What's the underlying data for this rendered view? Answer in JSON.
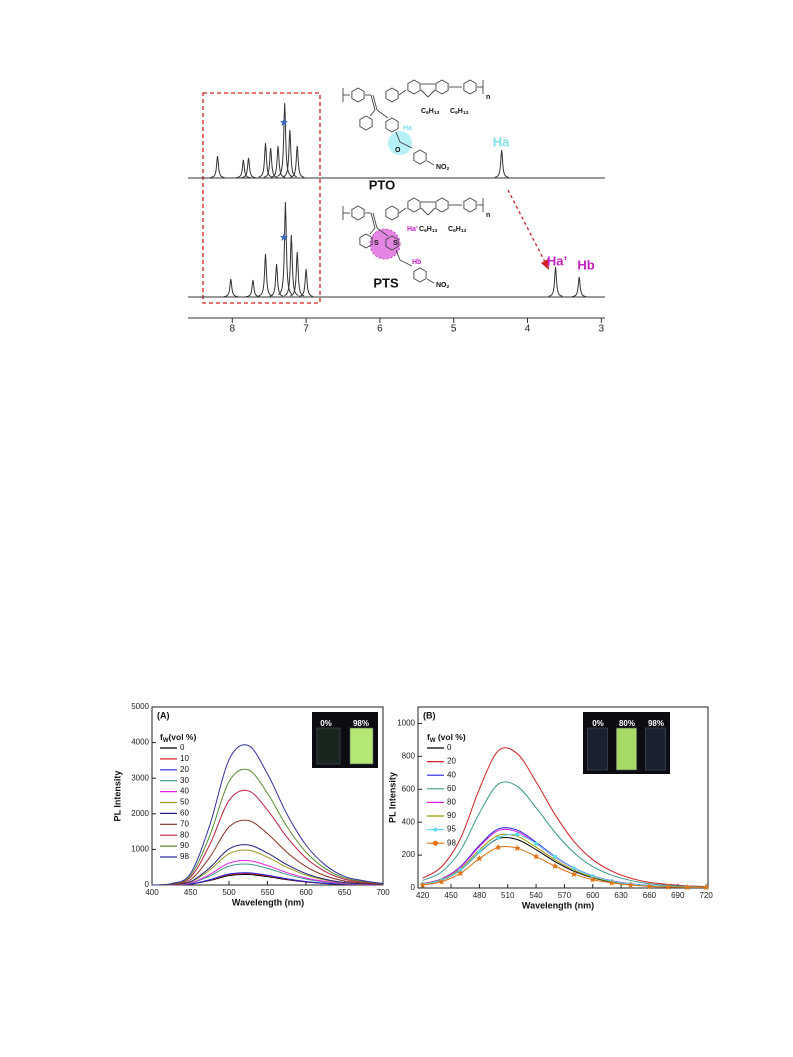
{
  "chart_data": [
    {
      "type": "nmr",
      "xlim": [
        8.6,
        2.95
      ],
      "xticks": [
        8,
        7,
        6,
        5,
        4,
        3
      ],
      "spectra": [
        {
          "name": "PTO",
          "peaks": [
            {
              "x": 8.2,
              "h": 22
            },
            {
              "x": 7.85,
              "h": 18
            },
            {
              "x": 7.78,
              "h": 20
            },
            {
              "x": 7.55,
              "h": 35
            },
            {
              "x": 7.48,
              "h": 30
            },
            {
              "x": 7.38,
              "h": 32
            },
            {
              "x": 7.29,
              "h": 75
            },
            {
              "x": 7.22,
              "h": 48
            },
            {
              "x": 7.12,
              "h": 32
            },
            {
              "x": 4.35,
              "h": 28
            }
          ]
        },
        {
          "name": "PTS",
          "peaks": [
            {
              "x": 8.02,
              "h": 18
            },
            {
              "x": 7.72,
              "h": 17
            },
            {
              "x": 7.55,
              "h": 43
            },
            {
              "x": 7.4,
              "h": 33
            },
            {
              "x": 7.28,
              "h": 95
            },
            {
              "x": 7.2,
              "h": 62
            },
            {
              "x": 7.12,
              "h": 45
            },
            {
              "x": 7.0,
              "h": 28
            },
            {
              "x": 3.62,
              "h": 30
            },
            {
              "x": 3.3,
              "h": 20
            }
          ]
        }
      ],
      "peak_labels": [
        "Ha",
        "Ha’",
        "Hb"
      ],
      "structures": [
        {
          "texts": [
            [
              "n"
            ],
            [
              "C",
              "6",
              "H",
              "13"
            ],
            [
              "C",
              "6",
              "H",
              "13"
            ],
            [
              "Ha"
            ],
            [
              "O"
            ],
            [
              "NO",
              "2"
            ]
          ]
        },
        {
          "texts": [
            [
              "n"
            ],
            [
              "C",
              "6",
              "H",
              "13"
            ],
            [
              "C",
              "6",
              "H",
              "13"
            ],
            [
              "S"
            ],
            [
              "S"
            ],
            [
              "Ha’"
            ],
            [
              "Hb"
            ],
            [
              "NO",
              "2"
            ]
          ]
        }
      ]
    },
    {
      "type": "line",
      "panel": "(A)",
      "xlabel": "Wavelength (nm)",
      "ylabel": "PL Intensity",
      "xlim": [
        400,
        700
      ],
      "ylim": [
        0,
        5000
      ],
      "xticks": [
        400,
        450,
        500,
        550,
        600,
        650,
        700
      ],
      "yticks": [
        0,
        1000,
        2000,
        3000,
        4000,
        5000
      ],
      "legend_title": [
        "f",
        "W",
        "(vol %)"
      ],
      "inset_labels": [
        "0%",
        "98%"
      ],
      "x": [
        400,
        425,
        450,
        475,
        500,
        525,
        550,
        575,
        600,
        625,
        650,
        675,
        700
      ],
      "series": [
        {
          "name": "0",
          "color": "#000000",
          "values": [
            0,
            3,
            24,
            126,
            264,
            294,
            234,
            150,
            84,
            42,
            18,
            9,
            3
          ]
        },
        {
          "name": "10",
          "color": "#e02020",
          "values": [
            0,
            3,
            26,
            139,
            290,
            323,
            257,
            165,
            92,
            46,
            20,
            10,
            3
          ]
        },
        {
          "name": "20",
          "color": "#2020e0",
          "values": [
            0,
            4,
            28,
            147,
            308,
            343,
            273,
            175,
            98,
            49,
            21,
            11,
            4
          ]
        },
        {
          "name": "30",
          "color": "#3a9a8a",
          "values": [
            0,
            6,
            48,
            252,
            528,
            588,
            468,
            300,
            168,
            84,
            36,
            18,
            6
          ]
        },
        {
          "name": "40",
          "color": "#e020e0",
          "values": [
            0,
            7,
            56,
            294,
            616,
            686,
            546,
            350,
            196,
            98,
            42,
            21,
            7
          ]
        },
        {
          "name": "50",
          "color": "#9a9a20",
          "values": [
            0,
            10,
            80,
            420,
            880,
            980,
            780,
            500,
            280,
            140,
            60,
            30,
            10
          ]
        },
        {
          "name": "60",
          "color": "#202080",
          "values": [
            0,
            12,
            92,
            483,
            1012,
            1127,
            897,
            575,
            322,
            161,
            69,
            35,
            12
          ]
        },
        {
          "name": "70",
          "color": "#8a3020",
          "values": [
            0,
            19,
            148,
            777,
            1628,
            1813,
            1443,
            925,
            518,
            259,
            111,
            56,
            19
          ]
        },
        {
          "name": "80",
          "color": "#c02040",
          "values": [
            0,
            27,
            216,
            1134,
            2376,
            2646,
            2106,
            1350,
            756,
            378,
            162,
            81,
            27
          ]
        },
        {
          "name": "90",
          "color": "#5a8a30",
          "values": [
            0,
            33,
            264,
            1386,
            2904,
            3234,
            2574,
            1650,
            924,
            462,
            198,
            99,
            33
          ]
        },
        {
          "name": "98",
          "color": "#3030a0",
          "values": [
            0,
            40,
            320,
            1680,
            3520,
            3920,
            3120,
            2000,
            1120,
            560,
            240,
            120,
            40
          ]
        }
      ]
    },
    {
      "type": "line",
      "panel": "(B)",
      "xlabel": "Wavelength (nm)",
      "ylabel": "PL Intensity",
      "xlim": [
        415,
        722
      ],
      "ylim": [
        0,
        1100
      ],
      "xticks": [
        420,
        450,
        480,
        510,
        540,
        570,
        600,
        630,
        660,
        690,
        720
      ],
      "yticks": [
        0,
        200,
        400,
        600,
        800,
        1000
      ],
      "legend_title": [
        "f",
        "W",
        " (vol %)"
      ],
      "inset_labels": [
        "0%",
        "80%",
        "98%"
      ],
      "x": [
        420,
        440,
        460,
        480,
        500,
        520,
        540,
        560,
        580,
        600,
        620,
        640,
        660,
        680,
        700,
        720
      ],
      "series": [
        {
          "name": "0",
          "color": "#000000",
          "values": [
            22,
            47,
            109,
            217,
            301,
            295,
            233,
            161,
            102,
            62,
            37,
            22,
            12,
            8,
            5,
            3
          ]
        },
        {
          "name": "20",
          "color": "#d02020",
          "values": [
            60,
            129,
            301,
            602,
            834,
            817,
            645,
            447,
            284,
            172,
            103,
            60,
            34,
            22,
            13,
            9
          ]
        },
        {
          "name": "40",
          "color": "#2020e0",
          "values": [
            26,
            56,
            130,
            259,
            359,
            352,
            278,
            192,
            122,
            74,
            44,
            26,
            15,
            9,
            6,
            4
          ]
        },
        {
          "name": "60",
          "color": "#3a9a8a",
          "values": [
            46,
            98,
            228,
            455,
            631,
            618,
            488,
            338,
            215,
            130,
            78,
            46,
            26,
            16,
            10,
            7
          ]
        },
        {
          "name": "80",
          "color": "#e020e0",
          "values": [
            25,
            54,
            126,
            252,
            349,
            342,
            270,
            187,
            119,
            72,
            43,
            25,
            14,
            9,
            5,
            4
          ]
        },
        {
          "name": "90",
          "color": "#999900",
          "values": [
            23,
            50,
            116,
            231,
            320,
            314,
            248,
            172,
            109,
            66,
            40,
            23,
            13,
            8,
            5,
            3
          ]
        },
        {
          "name": "95",
          "color": "#60d8f0",
          "marker": "circle",
          "values": [
            23,
            48,
            110,
            220,
            305,
            325,
            270,
            190,
            120,
            72,
            42,
            24,
            14,
            9,
            5,
            3
          ]
        },
        {
          "name": "98",
          "color": "#e07010",
          "marker": "star",
          "values": [
            18,
            38,
            89,
            179,
            247,
            242,
            191,
            133,
            84,
            51,
            31,
            18,
            10,
            6,
            4,
            3
          ]
        }
      ]
    }
  ]
}
